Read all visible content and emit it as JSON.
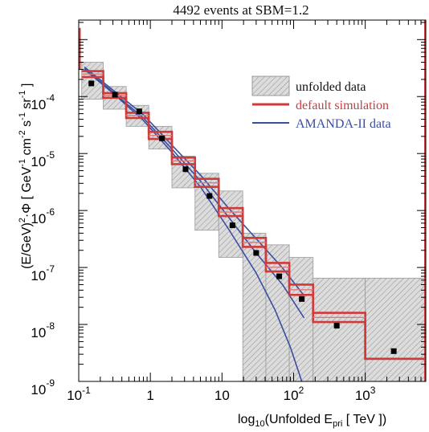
{
  "chart_data": {
    "type": "line",
    "title": "4492 events at SBM=1.2",
    "xlabel": {
      "base": "log",
      "sub": "10",
      "main": "(Unfolded E",
      "sub2": "pri",
      "unit": " [ TeV ])"
    },
    "ylabel": {
      "a": "(E/GeV)",
      "a_sup": "2",
      "b": "·Φ [ GeV",
      "b_sup": "-1",
      "c": " cm",
      "c_sup": "-2",
      "d": " s",
      "d_sup": "-1",
      "e": " sr",
      "e_sup": "-1",
      "f": " ]"
    },
    "x_scale": "log",
    "y_scale": "log",
    "xlim": [
      0.1,
      7000
    ],
    "ylim": [
      1e-09,
      0.0022
    ],
    "x_ticks": [
      {
        "value": 0.1,
        "base": "10",
        "exp": "-1"
      },
      {
        "value": 1,
        "base": "1",
        "exp": ""
      },
      {
        "value": 10,
        "base": "10",
        "exp": ""
      },
      {
        "value": 100,
        "base": "10",
        "exp": "2"
      },
      {
        "value": 1000,
        "base": "10",
        "exp": "3"
      }
    ],
    "y_ticks": [
      {
        "value": 0.0001,
        "base": "10",
        "exp": "-4"
      },
      {
        "value": 1e-05,
        "base": "10",
        "exp": "-5"
      },
      {
        "value": 1e-06,
        "base": "10",
        "exp": "-6"
      },
      {
        "value": 1e-07,
        "base": "10",
        "exp": "-7"
      },
      {
        "value": 1e-08,
        "base": "10",
        "exp": "-8"
      },
      {
        "value": 1e-09,
        "base": "10",
        "exp": "-9"
      }
    ],
    "grid": false,
    "legend_position": "top-right",
    "legend": [
      {
        "label": "unfolded data",
        "kind": "box"
      },
      {
        "label": "default simulation",
        "kind": "line",
        "color": "#d03a3a"
      },
      {
        "label": "AMANDA-II data",
        "kind": "line",
        "color": "#3a4ea0"
      }
    ],
    "colors": {
      "unfolded": "#d8d8d8",
      "simulation": "#d03a3a",
      "amanda": "#3a4ea0",
      "simulation_inner": "#e07a7a"
    },
    "unfolded_boxes": [
      {
        "x0": 0.11,
        "x1": 0.22,
        "y_lo": 9e-05,
        "y_hi": 0.0004
      },
      {
        "x0": 0.22,
        "x1": 0.46,
        "y_lo": 6e-05,
        "y_hi": 0.00015
      },
      {
        "x0": 0.46,
        "x1": 0.95,
        "y_lo": 3e-05,
        "y_hi": 7e-05
      },
      {
        "x0": 0.95,
        "x1": 2.0,
        "y_lo": 1.2e-05,
        "y_hi": 3e-05
      },
      {
        "x0": 2.0,
        "x1": 4.2,
        "y_lo": 2.5e-06,
        "y_hi": 9e-06
      },
      {
        "x0": 4.2,
        "x1": 9.0,
        "y_lo": 4.5e-07,
        "y_hi": 4.5e-06
      },
      {
        "x0": 9.0,
        "x1": 19.5,
        "y_lo": 1.5e-07,
        "y_hi": 2.2e-06
      },
      {
        "x0": 19.5,
        "x1": 41,
        "y_lo": 1e-09,
        "y_hi": 4e-07
      },
      {
        "x0": 41,
        "x1": 87,
        "y_lo": 1e-09,
        "y_hi": 2.5e-07
      },
      {
        "x0": 87,
        "x1": 187,
        "y_lo": 1e-09,
        "y_hi": 1.5e-07
      },
      {
        "x0": 187,
        "x1": 1000,
        "y_lo": 1e-09,
        "y_hi": 6.5e-08
      },
      {
        "x0": 1000,
        "x1": 7000,
        "y_lo": 1e-09,
        "y_hi": 6.5e-08
      }
    ],
    "simulation_bins": [
      {
        "x0": 0.11,
        "x1": 0.22,
        "y_hi": 0.00028,
        "y_lo": 0.00022
      },
      {
        "x0": 0.22,
        "x1": 0.46,
        "y_hi": 0.000115,
        "y_lo": 9.5e-05
      },
      {
        "x0": 0.46,
        "x1": 0.95,
        "y_hi": 5.2e-05,
        "y_lo": 4.2e-05
      },
      {
        "x0": 0.95,
        "x1": 2.0,
        "y_hi": 2.4e-05,
        "y_lo": 1.8e-05
      },
      {
        "x0": 2.0,
        "x1": 4.2,
        "y_hi": 8.5e-06,
        "y_lo": 6.5e-06
      },
      {
        "x0": 4.2,
        "x1": 9.0,
        "y_hi": 3.6e-06,
        "y_lo": 2.6e-06
      },
      {
        "x0": 9.0,
        "x1": 19.5,
        "y_hi": 1.1e-06,
        "y_lo": 8e-07
      },
      {
        "x0": 19.5,
        "x1": 41,
        "y_hi": 3.3e-07,
        "y_lo": 2.3e-07
      },
      {
        "x0": 41,
        "x1": 87,
        "y_hi": 1.2e-07,
        "y_lo": 8.5e-08
      },
      {
        "x0": 87,
        "x1": 187,
        "y_hi": 5e-08,
        "y_lo": 3.3e-08
      },
      {
        "x0": 187,
        "x1": 1000,
        "y_hi": 1.6e-08,
        "y_lo": 1.1e-08
      },
      {
        "x0": 1000,
        "x1": 7000,
        "y_hi": 2.5e-09,
        "y_lo": 2.5e-09
      }
    ],
    "simulation_edge": {
      "x": 0.1,
      "y_top": 0.0016,
      "y_bottom": 0.0003
    },
    "simulation_right_edge": {
      "x": 7000,
      "y_top": 0.0022,
      "y_bottom": 1e-09
    },
    "amanda_lines": [
      {
        "name": "AMANDA-II data (upper)",
        "x": [
          0.12,
          0.3,
          0.8,
          2.0,
          5.0,
          12,
          30,
          70,
          140
        ],
        "y": [
          0.00033,
          0.00013,
          4.8e-05,
          1.4e-05,
          4.2e-06,
          1.15e-06,
          3.2e-07,
          9.8e-08,
          3.2e-08
        ]
      },
      {
        "name": "AMANDA-II data (middle)",
        "x": [
          0.12,
          0.3,
          0.8,
          2.0,
          5.0,
          12,
          30,
          70,
          140
        ],
        "y": [
          0.00031,
          0.00012,
          4.2e-05,
          1.2e-05,
          3.3e-06,
          8e-07,
          1.8e-07,
          5e-08,
          1.3e-08
        ]
      },
      {
        "name": "AMANDA-II data (lower)",
        "x": [
          0.12,
          0.3,
          0.8,
          2.0,
          5.0,
          12,
          30,
          55,
          90,
          130
        ],
        "y": [
          0.0003,
          0.000115,
          3.8e-05,
          1.05e-05,
          2.6e-06,
          5e-07,
          8e-08,
          1.8e-08,
          4e-09,
          1e-09
        ]
      }
    ],
    "points": [
      {
        "x": 0.15,
        "y": 0.00017
      },
      {
        "x": 0.32,
        "y": 0.000108
      },
      {
        "x": 0.7,
        "y": 5.5e-05
      },
      {
        "x": 1.45,
        "y": 1.85e-05
      },
      {
        "x": 3.1,
        "y": 5.3e-06
      },
      {
        "x": 6.7,
        "y": 1.8e-06
      },
      {
        "x": 14,
        "y": 5.5e-07
      },
      {
        "x": 30,
        "y": 1.8e-07
      },
      {
        "x": 63,
        "y": 7e-08
      },
      {
        "x": 130,
        "y": 2.8e-08
      },
      {
        "x": 400,
        "y": 9.5e-09
      },
      {
        "x": 2500,
        "y": 3.4e-09
      }
    ]
  }
}
